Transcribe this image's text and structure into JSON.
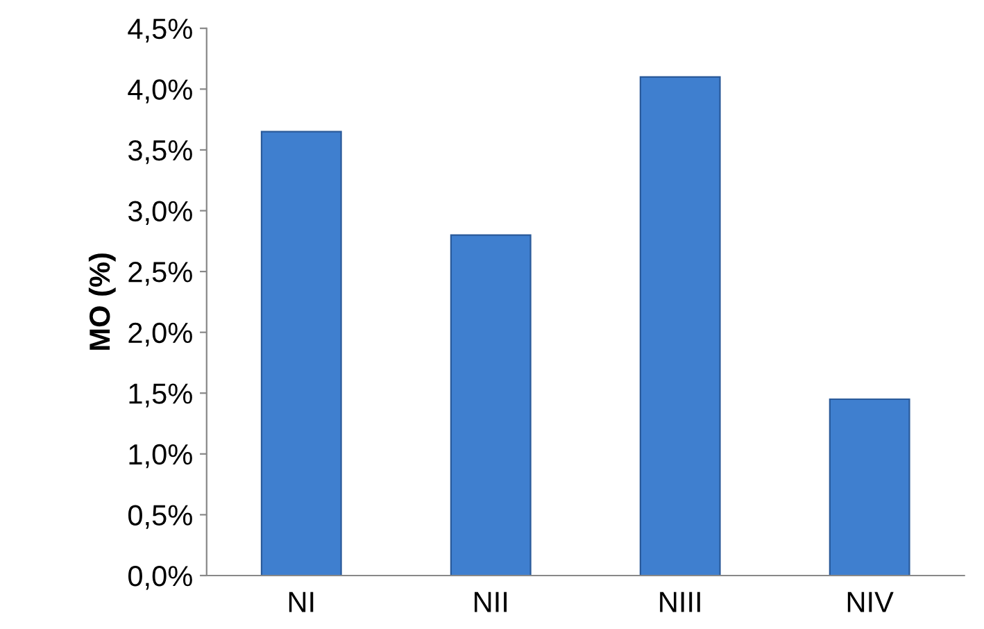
{
  "chart_data": {
    "type": "bar",
    "ylabel": "MO (%)",
    "categories": [
      "NI",
      "NII",
      "NIII",
      "NIV"
    ],
    "values": [
      3.65,
      2.8,
      4.1,
      1.45
    ],
    "color": "#3f7fcf",
    "ylim": [
      0,
      4.5
    ],
    "yticks": [
      {
        "value": 0,
        "label": "0,0%"
      },
      {
        "value": 0.5,
        "label": "0,5%"
      },
      {
        "value": 1,
        "label": "1,0%"
      },
      {
        "value": 1.5,
        "label": "1,5%"
      },
      {
        "value": 2,
        "label": "2,0%"
      },
      {
        "value": 2.5,
        "label": "2,5%"
      },
      {
        "value": 3,
        "label": "3,0%"
      },
      {
        "value": 3.5,
        "label": "3,5%"
      },
      {
        "value": 4,
        "label": "4,0%"
      },
      {
        "value": 4.5,
        "label": "4,5%"
      }
    ],
    "grid": false
  }
}
